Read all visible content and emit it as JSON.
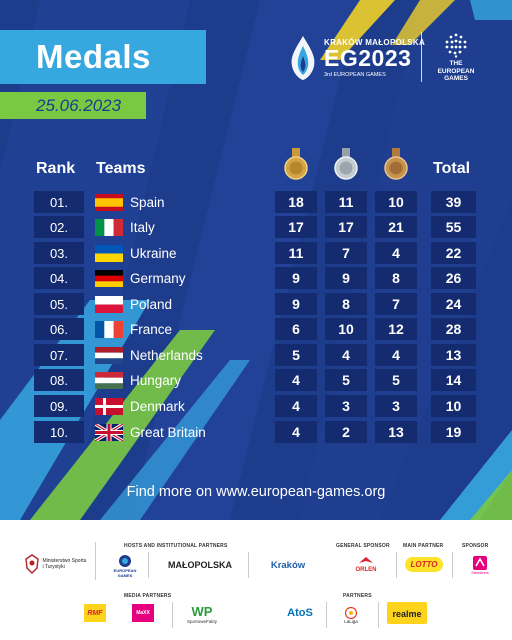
{
  "title": "Medals",
  "date": "25.06.2023",
  "event_logo": {
    "city": "KRAKÓW MAŁOPOLSKA",
    "mark": "EG2023",
    "subtitle": "3rd EUROPEAN GAMES",
    "games_line1": "THE",
    "games_line2": "EUROPEAN",
    "games_line3": "GAMES"
  },
  "headers": {
    "rank": "Rank",
    "teams": "Teams",
    "total": "Total"
  },
  "medal_icons": [
    "gold-medal-icon",
    "silver-medal-icon",
    "bronze-medal-icon"
  ],
  "standings": [
    {
      "rank": "01.",
      "team": "Spain",
      "gold": "18",
      "silver": "11",
      "bronze": "10",
      "total": "39"
    },
    {
      "rank": "02.",
      "team": "Italy",
      "gold": "17",
      "silver": "17",
      "bronze": "21",
      "total": "55"
    },
    {
      "rank": "03.",
      "team": "Ukraine",
      "gold": "11",
      "silver": "7",
      "bronze": "4",
      "total": "22"
    },
    {
      "rank": "04.",
      "team": "Germany",
      "gold": "9",
      "silver": "9",
      "bronze": "8",
      "total": "26"
    },
    {
      "rank": "05.",
      "team": "Poland",
      "gold": "9",
      "silver": "8",
      "bronze": "7",
      "total": "24"
    },
    {
      "rank": "06.",
      "team": "France",
      "gold": "6",
      "silver": "10",
      "bronze": "12",
      "total": "28"
    },
    {
      "rank": "07.",
      "team": "Netherlands",
      "gold": "5",
      "silver": "4",
      "bronze": "4",
      "total": "13"
    },
    {
      "rank": "08.",
      "team": "Hungary",
      "gold": "4",
      "silver": "5",
      "bronze": "5",
      "total": "14"
    },
    {
      "rank": "09.",
      "team": "Denmark",
      "gold": "4",
      "silver": "3",
      "bronze": "3",
      "total": "10"
    },
    {
      "rank": "10.",
      "team": "Great Britain",
      "gold": "4",
      "silver": "2",
      "bronze": "13",
      "total": "19"
    }
  ],
  "footer_text": "Find more on www.european-games.org",
  "sponsors": {
    "hosts_header": "HOSTS AND INSTITUTIONAL PARTNERS",
    "general_header": "GENERAL SPONSOR",
    "main_header": "MAIN PARTNER",
    "sponsor_header": "SPONSOR",
    "media_header": "MEDIA PARTNERS",
    "partners_header": "PARTNERS",
    "ministry": "Ministerstwo Sportu i Turystyki",
    "eoc": "EUROPEAN GAMES",
    "malopolska": "MAŁOPOLSKA",
    "krakow": "Kraków",
    "orlen": "ORLEN",
    "lotto": "LOTTO",
    "sponsor_brand": "Steinkreis",
    "rmf": "RMF",
    "media2": "MaXX",
    "sportowe": "SportoweFakty",
    "atos": "AtoS",
    "laliga": "LaLiga",
    "realme": "realme"
  }
}
